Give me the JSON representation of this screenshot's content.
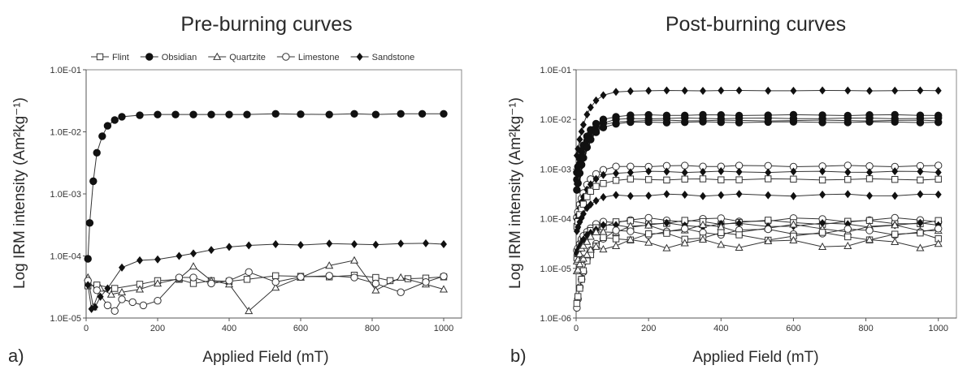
{
  "chart_data": [
    {
      "type": "line",
      "panel_letter": "a)",
      "title": "Pre-burning curves",
      "xlabel": "Applied Field (mT)",
      "ylabel": "Log IRM intensity (Am²kg⁻¹)",
      "yscale": "log",
      "xlim": [
        0,
        1050
      ],
      "ylim": [
        1e-05,
        0.1
      ],
      "xticks": [
        0,
        200,
        400,
        600,
        800,
        1000
      ],
      "xtick_labels": [
        "0",
        "200",
        "400",
        "600",
        "800",
        "1000"
      ],
      "yticks": [
        1e-05,
        0.0001,
        0.001,
        0.01,
        0.1
      ],
      "ytick_labels": [
        "1.0E-05",
        "1.0E-04",
        "1.0E-03",
        "1.0E-02",
        "1.0E-01"
      ],
      "grid": false,
      "legend": {
        "position": "top",
        "entries": [
          {
            "label": "Flint",
            "marker": "square-open"
          },
          {
            "label": "Obsidian",
            "marker": "circle-filled"
          },
          {
            "label": "Quartzite",
            "marker": "triangle-open"
          },
          {
            "label": "Limestone",
            "marker": "circle-open"
          },
          {
            "label": "Sandstone",
            "marker": "diamond-filled"
          }
        ]
      },
      "series": [
        {
          "name": "Flint",
          "marker": "square-open",
          "x": [
            5,
            30,
            80,
            150,
            200,
            260,
            300,
            350,
            400,
            450,
            530,
            600,
            680,
            750,
            810,
            850,
            900,
            950,
            1000
          ],
          "y": [
            3.3e-05,
            3.4e-05,
            3e-05,
            3.5e-05,
            4e-05,
            4.2e-05,
            3.6e-05,
            4e-05,
            3.9e-05,
            4.2e-05,
            4.8e-05,
            4.7e-05,
            4.6e-05,
            4.9e-05,
            4.5e-05,
            4e-05,
            4.3e-05,
            4.4e-05,
            4.6e-05
          ]
        },
        {
          "name": "Obsidian",
          "marker": "circle-filled",
          "x": [
            5,
            10,
            20,
            30,
            45,
            60,
            80,
            100,
            150,
            200,
            250,
            300,
            350,
            400,
            450,
            530,
            600,
            680,
            750,
            810,
            880,
            940,
            1000
          ],
          "y": [
            9e-05,
            0.00034,
            0.0016,
            0.0046,
            0.0085,
            0.0125,
            0.0155,
            0.0175,
            0.0185,
            0.019,
            0.019,
            0.019,
            0.019,
            0.019,
            0.019,
            0.0195,
            0.0192,
            0.019,
            0.0195,
            0.019,
            0.0195,
            0.0195,
            0.0195
          ]
        },
        {
          "name": "Quartzite",
          "marker": "triangle-open",
          "x": [
            5,
            20,
            40,
            70,
            100,
            150,
            200,
            260,
            300,
            350,
            400,
            455,
            530,
            600,
            680,
            750,
            810,
            880,
            950,
            1000
          ],
          "y": [
            4.5e-05,
            1.5e-05,
            3e-05,
            2.4e-05,
            2.6e-05,
            2.9e-05,
            3.6e-05,
            4.3e-05,
            6.8e-05,
            4e-05,
            3.5e-05,
            1.3e-05,
            3.1e-05,
            4.5e-05,
            7e-05,
            8.5e-05,
            2.8e-05,
            4.5e-05,
            3.5e-05,
            2.9e-05
          ]
        },
        {
          "name": "Limestone",
          "marker": "circle-open",
          "x": [
            5,
            30,
            60,
            80,
            100,
            130,
            160,
            200,
            260,
            300,
            350,
            400,
            455,
            530,
            600,
            680,
            750,
            810,
            880,
            950,
            1000
          ],
          "y": [
            4e-05,
            2.8e-05,
            1.6e-05,
            1.3e-05,
            2e-05,
            1.8e-05,
            1.6e-05,
            1.9e-05,
            4.5e-05,
            4.5e-05,
            3.6e-05,
            4e-05,
            5.5e-05,
            3.8e-05,
            4.6e-05,
            4.8e-05,
            4.5e-05,
            3.6e-05,
            2.6e-05,
            3.8e-05,
            4.7e-05
          ]
        },
        {
          "name": "Sandstone",
          "marker": "diamond-filled",
          "x": [
            5,
            15,
            25,
            40,
            60,
            100,
            150,
            200,
            260,
            300,
            350,
            400,
            455,
            530,
            600,
            680,
            750,
            810,
            880,
            950,
            1000
          ],
          "y": [
            3.4e-05,
            1.4e-05,
            1.5e-05,
            2.2e-05,
            3e-05,
            6.5e-05,
            8.5e-05,
            8.8e-05,
            0.0001,
            0.00011,
            0.000125,
            0.00014,
            0.000148,
            0.000155,
            0.00015,
            0.000158,
            0.000155,
            0.000152,
            0.000158,
            0.00016,
            0.000155
          ]
        }
      ]
    },
    {
      "type": "line",
      "panel_letter": "b)",
      "title": "Post-burning curves",
      "xlabel": "Applied Field (mT)",
      "ylabel": "Log IRM intensity (Am²kg⁻¹)",
      "yscale": "log",
      "xlim": [
        0,
        1050
      ],
      "ylim": [
        1e-06,
        0.1
      ],
      "xticks": [
        0,
        200,
        400,
        600,
        800,
        1000
      ],
      "xtick_labels": [
        "0",
        "200",
        "400",
        "600",
        "800",
        "1000"
      ],
      "yticks": [
        1e-06,
        1e-05,
        0.0001,
        0.001,
        0.01,
        0.1
      ],
      "ytick_labels": [
        "1.0E-06",
        "1.0E-05",
        "1.0E-04",
        "1.0E-03",
        "1.0E-02",
        "1.0E-01"
      ],
      "grid": false,
      "series": [
        {
          "marker": "diamond-filled",
          "final": 0.038,
          "start": 0.0015,
          "jitter": 0.01
        },
        {
          "marker": "circle-filled",
          "final": 0.0122,
          "start": 0.0007,
          "jitter": 0.02
        },
        {
          "marker": "circle-filled",
          "final": 0.0105,
          "start": 0.0005,
          "jitter": 0.02
        },
        {
          "marker": "diamond-filled",
          "final": 0.0095,
          "start": 0.0004,
          "jitter": 0.02
        },
        {
          "marker": "circle-filled",
          "final": 0.0088,
          "start": 0.0003,
          "jitter": 0.02
        },
        {
          "marker": "circle-open",
          "final": 0.00115,
          "start": 9e-05,
          "jitter": 0.03
        },
        {
          "marker": "diamond-filled",
          "final": 0.00088,
          "start": 8e-05,
          "jitter": 0.03
        },
        {
          "marker": "square-open",
          "final": 0.00062,
          "start": 6e-05,
          "jitter": 0.03
        },
        {
          "marker": "diamond-filled",
          "final": 0.0003,
          "start": 5e-05,
          "jitter": 0.05
        },
        {
          "marker": "circle-open",
          "final": 9.5e-05,
          "start": 2e-05,
          "jitter": 0.1
        },
        {
          "marker": "square-open",
          "final": 8.5e-05,
          "start": 1.5e-05,
          "jitter": 0.1
        },
        {
          "marker": "diamond-filled",
          "final": 7.5e-05,
          "start": 1.8e-05,
          "jitter": 0.1
        },
        {
          "marker": "triangle-open",
          "final": 6.5e-05,
          "start": 1.2e-05,
          "jitter": 0.18
        },
        {
          "marker": "circle-open",
          "final": 5.5e-05,
          "start": 1.3e-06,
          "jitter": 0.15
        },
        {
          "marker": "square-open",
          "final": 4.5e-05,
          "start": 1.5e-06,
          "jitter": 0.18
        },
        {
          "marker": "triangle-open",
          "final": 3.2e-05,
          "start": 8e-06,
          "jitter": 0.2
        }
      ]
    }
  ]
}
